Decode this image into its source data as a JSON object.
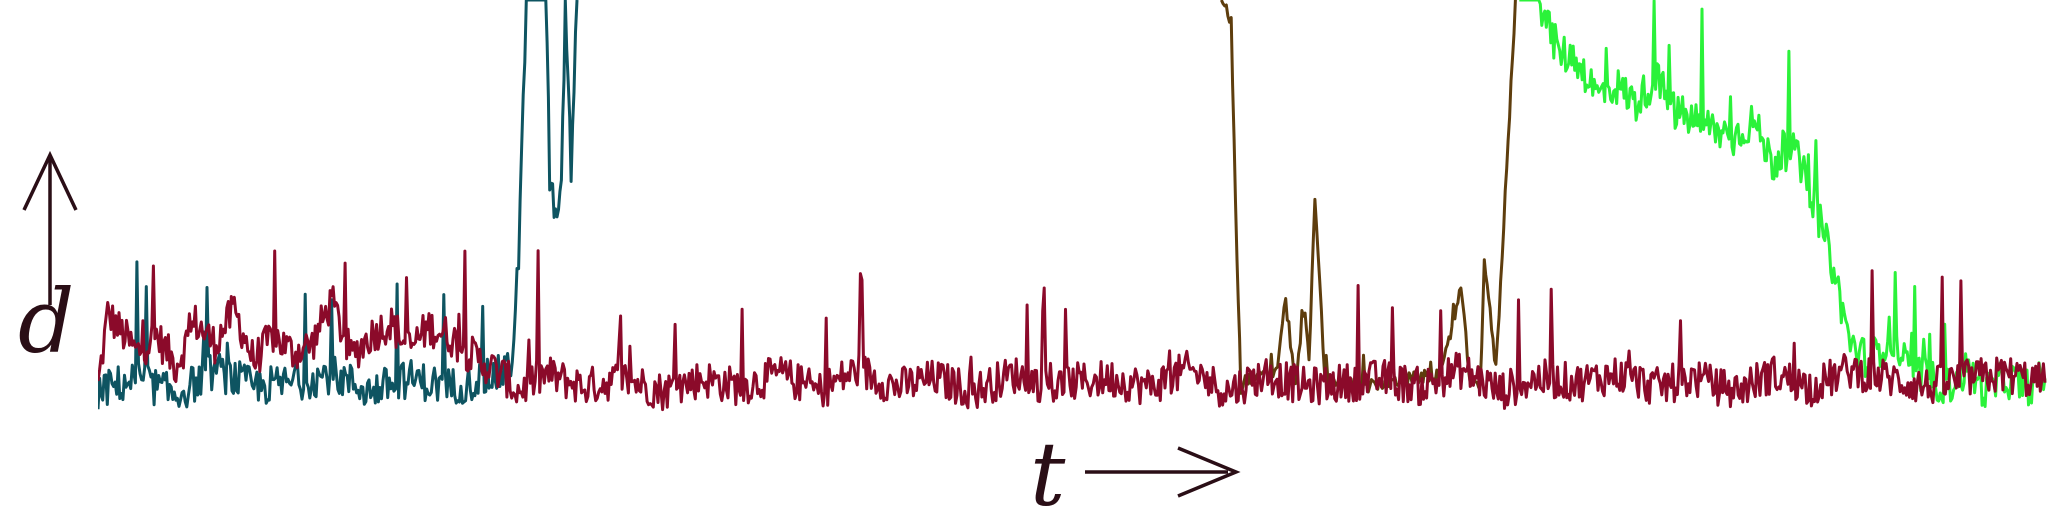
{
  "chart_data": {
    "type": "line",
    "xlabel": "t",
    "ylabel": "d",
    "xlim": [
      0,
      1000
    ],
    "ylim": [
      0,
      100
    ],
    "grid": false,
    "legend": "none",
    "axis_color": "#2a0e16",
    "series": [
      {
        "color": "#8b0a2a",
        "style": "noisy-baseline",
        "x": [
          0,
          5,
          10,
          20,
          30,
          40,
          50,
          60,
          70,
          80,
          90,
          100,
          110,
          120,
          130,
          140,
          150,
          160,
          170,
          180,
          190,
          200,
          210,
          215,
          230,
          250,
          270,
          290,
          310,
          330,
          350,
          370,
          390,
          410,
          430,
          450,
          470,
          490,
          500,
          520,
          540,
          560,
          580,
          600,
          620,
          640,
          660,
          680,
          700,
          720,
          740,
          760,
          780,
          800,
          820,
          840,
          860,
          880,
          900,
          920,
          940,
          960,
          980,
          1000
        ],
        "y": [
          10,
          27,
          24,
          18,
          22,
          15,
          25,
          20,
          28,
          16,
          22,
          18,
          20,
          30,
          17,
          22,
          25,
          19,
          24,
          22,
          18,
          15,
          12,
          9,
          13,
          10,
          12,
          9,
          12,
          10,
          13,
          9,
          14,
          10,
          12,
          9,
          13,
          10,
          11,
          12,
          10,
          14,
          9,
          13,
          10,
          11,
          12,
          10,
          14,
          9,
          12,
          11,
          13,
          10,
          12,
          9,
          13,
          10,
          14,
          12,
          10,
          12,
          13,
          11
        ]
      },
      {
        "color": "#0e5461",
        "style": "noisy-baseline",
        "x": [
          0,
          20,
          40,
          60,
          80,
          100,
          120,
          140,
          160,
          180,
          200,
          212,
          216,
          220,
          225,
          230,
          232,
          235,
          238,
          240,
          243,
          246
        ],
        "y": [
          9,
          12,
          8,
          14,
          10,
          11,
          13,
          9,
          12,
          10,
          12,
          14,
          40,
          100,
          100,
          100,
          60,
          48,
          54,
          100,
          60,
          100
        ]
      },
      {
        "color": "#5e3d0d",
        "style": "spikes",
        "x": [
          577,
          582,
          585,
          587,
          590,
          605,
          610,
          615,
          620,
          622,
          625,
          630,
          650,
          675,
          690,
          700,
          705,
          710,
          712,
          718,
          722,
          728
        ],
        "y": [
          100,
          95,
          40,
          10,
          12,
          13,
          30,
          11,
          28,
          15,
          55,
          12,
          10,
          12,
          13,
          33,
          10,
          11,
          40,
          14,
          48,
          100
        ]
      },
      {
        "color": "#2bf23a",
        "style": "decaying",
        "x": [
          730,
          740,
          750,
          760,
          770,
          780,
          790,
          800,
          810,
          820,
          830,
          840,
          850,
          860,
          870,
          880,
          890,
          900,
          910,
          920,
          930,
          940,
          950,
          960,
          970,
          980,
          990,
          1000
        ],
        "y": [
          100,
          100,
          88,
          86,
          78,
          80,
          76,
          82,
          74,
          72,
          70,
          68,
          72,
          62,
          66,
          55,
          40,
          20,
          16,
          22,
          14,
          12,
          10,
          14,
          9,
          12,
          10,
          12
        ]
      }
    ]
  }
}
